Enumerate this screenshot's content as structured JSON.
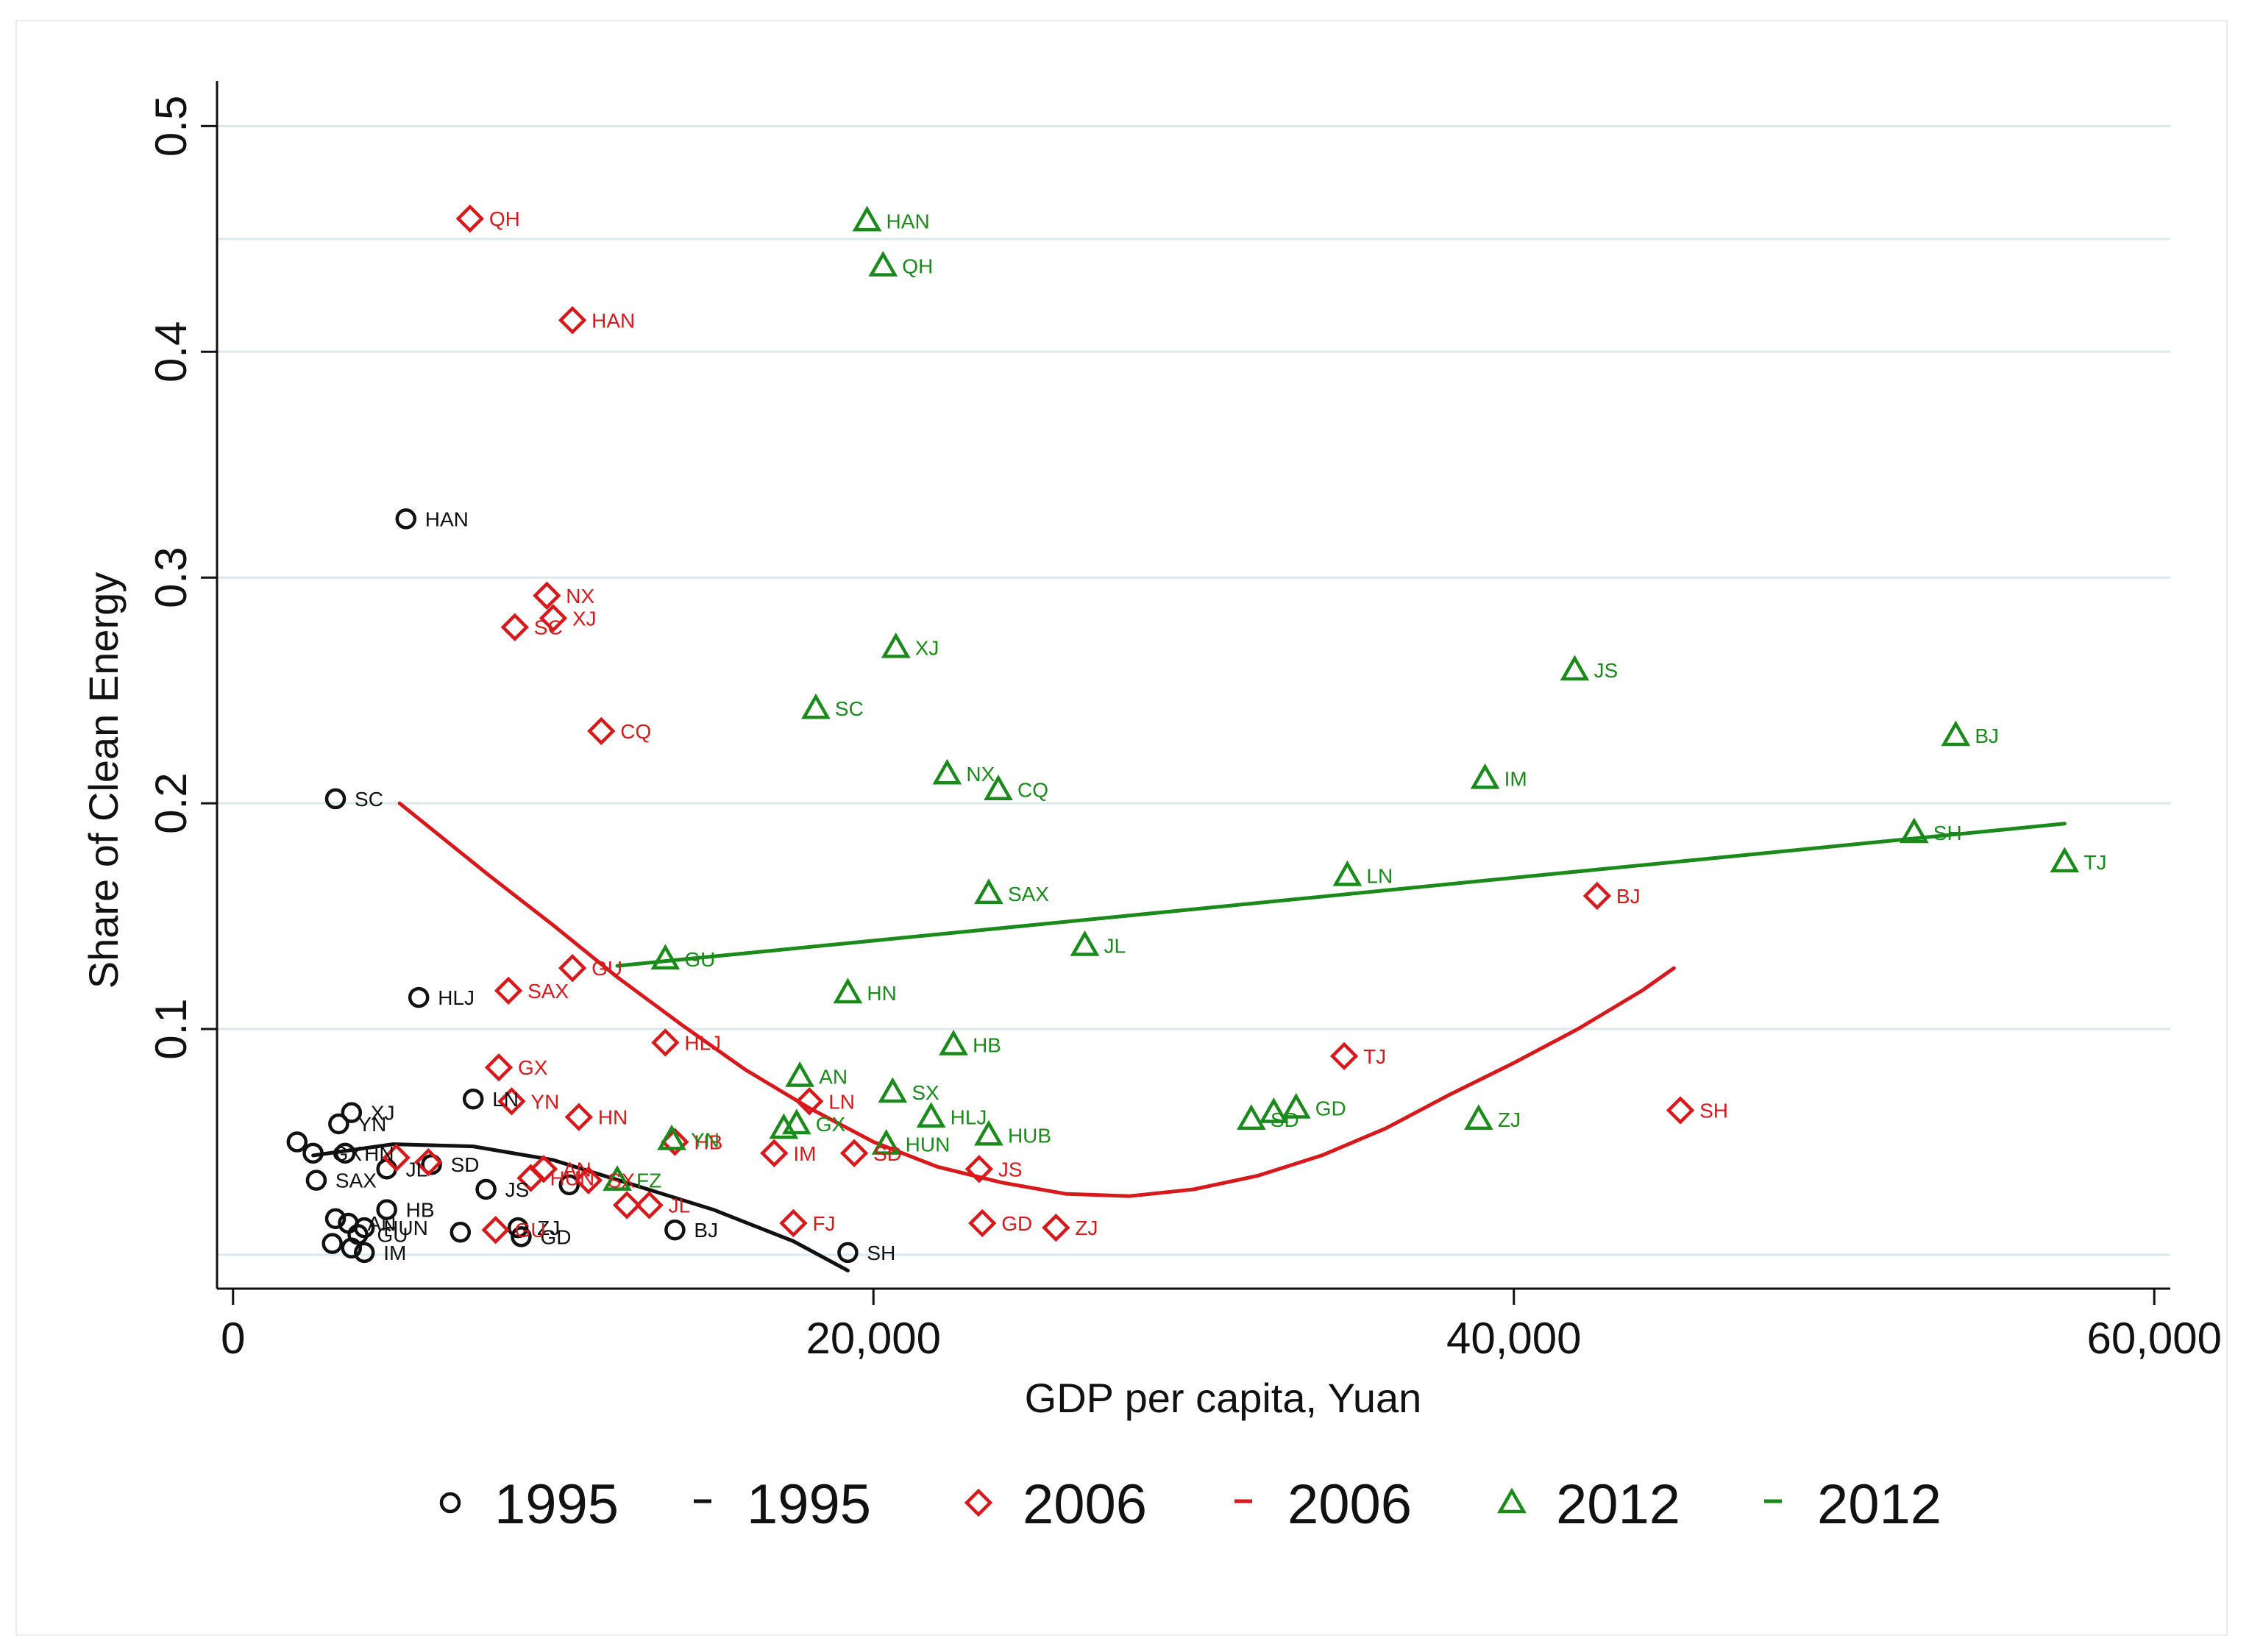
{
  "chart_data": {
    "type": "scatter",
    "xlabel": "GDP per capita, Yuan",
    "ylabel": "Share of Clean Energy",
    "xlim": [
      -500,
      60500
    ],
    "ylim": [
      -0.015,
      0.52
    ],
    "x_ticks": [
      0,
      20000,
      40000,
      60000
    ],
    "x_tick_labels": [
      "0",
      "20,000",
      "40,000",
      "60,000"
    ],
    "y_ticks": [
      0.1,
      0.2,
      0.3,
      0.4,
      0.5
    ],
    "y_tick_labels": [
      "0.1",
      "0.2",
      "0.3",
      "0.4",
      "0.5"
    ],
    "gridlines_y": [
      0.0,
      0.1,
      0.2,
      0.3,
      0.4,
      0.45,
      0.5
    ],
    "colors": {
      "1995": "#111111",
      "2006": "#d7191c",
      "2012": "#1a8a1a",
      "grid": "#dbe8ee"
    },
    "series": [
      {
        "name": "1995",
        "marker": "circle",
        "color": "#111111",
        "points": [
          {
            "x": 5400,
            "y": 0.326,
            "label": "HAN"
          },
          {
            "x": 3200,
            "y": 0.202,
            "label": "SC"
          },
          {
            "x": 5800,
            "y": 0.114,
            "label": "HLJ"
          },
          {
            "x": 7500,
            "y": 0.069,
            "label": "LN"
          },
          {
            "x": 3700,
            "y": 0.063,
            "label": "XJ"
          },
          {
            "x": 3300,
            "y": 0.058,
            "label": "YN"
          },
          {
            "x": 2000,
            "y": 0.05,
            "label": ""
          },
          {
            "x": 2500,
            "y": 0.045,
            "label": "GX"
          },
          {
            "x": 3500,
            "y": 0.045,
            "label": "HN"
          },
          {
            "x": 4800,
            "y": 0.038,
            "label": "JL"
          },
          {
            "x": 6200,
            "y": 0.04,
            "label": "SD"
          },
          {
            "x": 2600,
            "y": 0.033,
            "label": "SAX"
          },
          {
            "x": 7900,
            "y": 0.029,
            "label": "JS"
          },
          {
            "x": 10500,
            "y": 0.031,
            "label": ""
          },
          {
            "x": 3200,
            "y": 0.016,
            "label": ""
          },
          {
            "x": 4800,
            "y": 0.02,
            "label": "HB"
          },
          {
            "x": 3600,
            "y": 0.014,
            "label": "AN"
          },
          {
            "x": 4100,
            "y": 0.012,
            "label": "HUN"
          },
          {
            "x": 3900,
            "y": 0.009,
            "label": "GU"
          },
          {
            "x": 3100,
            "y": 0.005,
            "label": ""
          },
          {
            "x": 3700,
            "y": 0.003,
            "label": ""
          },
          {
            "x": 4100,
            "y": 0.001,
            "label": "IM"
          },
          {
            "x": 7100,
            "y": 0.01,
            "label": ""
          },
          {
            "x": 8900,
            "y": 0.012,
            "label": "ZJ"
          },
          {
            "x": 9000,
            "y": 0.008,
            "label": "GD"
          },
          {
            "x": 13800,
            "y": 0.011,
            "label": "BJ"
          },
          {
            "x": 19200,
            "y": 0.001,
            "label": "SH"
          }
        ],
        "fit": {
          "type": "quadratic",
          "points": [
            [
              2500,
              0.044
            ],
            [
              5000,
              0.049
            ],
            [
              7500,
              0.048
            ],
            [
              10000,
              0.042
            ],
            [
              12500,
              0.031
            ],
            [
              15000,
              0.02
            ],
            [
              17500,
              0.006
            ],
            [
              19200,
              -0.007
            ]
          ]
        }
      },
      {
        "name": "2006",
        "marker": "diamond",
        "color": "#d7191c",
        "points": [
          {
            "x": 7400,
            "y": 0.459,
            "label": "QH"
          },
          {
            "x": 10600,
            "y": 0.414,
            "label": "HAN"
          },
          {
            "x": 9800,
            "y": 0.292,
            "label": "NX"
          },
          {
            "x": 10000,
            "y": 0.282,
            "label": "XJ"
          },
          {
            "x": 8800,
            "y": 0.278,
            "label": "SC"
          },
          {
            "x": 11500,
            "y": 0.232,
            "label": "CQ"
          },
          {
            "x": 10600,
            "y": 0.127,
            "label": "GU"
          },
          {
            "x": 8600,
            "y": 0.117,
            "label": "SAX"
          },
          {
            "x": 13500,
            "y": 0.094,
            "label": "HLJ"
          },
          {
            "x": 8300,
            "y": 0.083,
            "label": "GX"
          },
          {
            "x": 8700,
            "y": 0.068,
            "label": "YN"
          },
          {
            "x": 10800,
            "y": 0.061,
            "label": "HN"
          },
          {
            "x": 18000,
            "y": 0.068,
            "label": "LN"
          },
          {
            "x": 13800,
            "y": 0.05,
            "label": "HB"
          },
          {
            "x": 16900,
            "y": 0.045,
            "label": "IM"
          },
          {
            "x": 19400,
            "y": 0.045,
            "label": "SD"
          },
          {
            "x": 23300,
            "y": 0.038,
            "label": "JS"
          },
          {
            "x": 5100,
            "y": 0.043,
            "label": ""
          },
          {
            "x": 6100,
            "y": 0.041,
            "label": ""
          },
          {
            "x": 9700,
            "y": 0.038,
            "label": "AN"
          },
          {
            "x": 9300,
            "y": 0.034,
            "label": "HUN"
          },
          {
            "x": 11100,
            "y": 0.033,
            "label": "SX"
          },
          {
            "x": 12300,
            "y": 0.022,
            "label": ""
          },
          {
            "x": 13000,
            "y": 0.022,
            "label": "JL"
          },
          {
            "x": 8200,
            "y": 0.011,
            "label": "GU"
          },
          {
            "x": 17500,
            "y": 0.014,
            "label": "FJ"
          },
          {
            "x": 23400,
            "y": 0.014,
            "label": "GD"
          },
          {
            "x": 25700,
            "y": 0.012,
            "label": "ZJ"
          },
          {
            "x": 34700,
            "y": 0.088,
            "label": "TJ"
          },
          {
            "x": 42600,
            "y": 0.159,
            "label": "BJ"
          },
          {
            "x": 45200,
            "y": 0.064,
            "label": "SH"
          }
        ],
        "fit": {
          "type": "quadratic",
          "points": [
            [
              5200,
              0.2
            ],
            [
              8000,
              0.168
            ],
            [
              10000,
              0.146
            ],
            [
              12000,
              0.123
            ],
            [
              14000,
              0.102
            ],
            [
              16000,
              0.082
            ],
            [
              18000,
              0.065
            ],
            [
              20000,
              0.05
            ],
            [
              22000,
              0.039
            ],
            [
              24000,
              0.032
            ],
            [
              26000,
              0.027
            ],
            [
              28000,
              0.026
            ],
            [
              30000,
              0.029
            ],
            [
              32000,
              0.035
            ],
            [
              34000,
              0.044
            ],
            [
              36000,
              0.056
            ],
            [
              38000,
              0.071
            ],
            [
              40000,
              0.085
            ],
            [
              42000,
              0.1
            ],
            [
              44000,
              0.117
            ],
            [
              45000,
              0.127
            ]
          ]
        }
      },
      {
        "name": "2012",
        "marker": "triangle",
        "color": "#1a8a1a",
        "points": [
          {
            "x": 19800,
            "y": 0.458,
            "label": "HAN"
          },
          {
            "x": 20300,
            "y": 0.438,
            "label": "QH"
          },
          {
            "x": 20700,
            "y": 0.269,
            "label": "XJ"
          },
          {
            "x": 18200,
            "y": 0.242,
            "label": "SC"
          },
          {
            "x": 22300,
            "y": 0.213,
            "label": "NX"
          },
          {
            "x": 23900,
            "y": 0.206,
            "label": "CQ"
          },
          {
            "x": 41900,
            "y": 0.259,
            "label": "JS"
          },
          {
            "x": 39100,
            "y": 0.211,
            "label": "IM"
          },
          {
            "x": 53800,
            "y": 0.23,
            "label": "BJ"
          },
          {
            "x": 52500,
            "y": 0.187,
            "label": "SH"
          },
          {
            "x": 57200,
            "y": 0.174,
            "label": "TJ"
          },
          {
            "x": 34800,
            "y": 0.168,
            "label": "LN"
          },
          {
            "x": 23600,
            "y": 0.16,
            "label": "SAX"
          },
          {
            "x": 26600,
            "y": 0.137,
            "label": "JL"
          },
          {
            "x": 13500,
            "y": 0.131,
            "label": "GU"
          },
          {
            "x": 19200,
            "y": 0.116,
            "label": "HN"
          },
          {
            "x": 22500,
            "y": 0.093,
            "label": "HB"
          },
          {
            "x": 17700,
            "y": 0.079,
            "label": "AN"
          },
          {
            "x": 20600,
            "y": 0.072,
            "label": "SX"
          },
          {
            "x": 21800,
            "y": 0.061,
            "label": "HLJ"
          },
          {
            "x": 17600,
            "y": 0.058,
            "label": "GX"
          },
          {
            "x": 17200,
            "y": 0.056,
            "label": ""
          },
          {
            "x": 13700,
            "y": 0.051,
            "label": "YN"
          },
          {
            "x": 20400,
            "y": 0.049,
            "label": "HUN"
          },
          {
            "x": 23600,
            "y": 0.053,
            "label": "HUB"
          },
          {
            "x": 12000,
            "y": 0.033,
            "label": "FZ"
          },
          {
            "x": 31800,
            "y": 0.06,
            "label": "SD"
          },
          {
            "x": 32500,
            "y": 0.063,
            "label": ""
          },
          {
            "x": 33200,
            "y": 0.065,
            "label": "GD"
          },
          {
            "x": 38900,
            "y": 0.06,
            "label": "ZJ"
          }
        ],
        "fit": {
          "type": "linear",
          "points": [
            [
              12000,
              0.128
            ],
            [
              57200,
              0.191
            ]
          ]
        }
      }
    ],
    "legend": {
      "position": "bottom",
      "entries": [
        {
          "label": "1995",
          "kind": "marker",
          "series": "1995"
        },
        {
          "label": "1995",
          "kind": "line",
          "series": "1995"
        },
        {
          "label": "2006",
          "kind": "marker",
          "series": "2006"
        },
        {
          "label": "2006",
          "kind": "line",
          "series": "2006"
        },
        {
          "label": "2012",
          "kind": "marker",
          "series": "2012"
        },
        {
          "label": "2012",
          "kind": "line",
          "series": "2012"
        }
      ]
    }
  }
}
